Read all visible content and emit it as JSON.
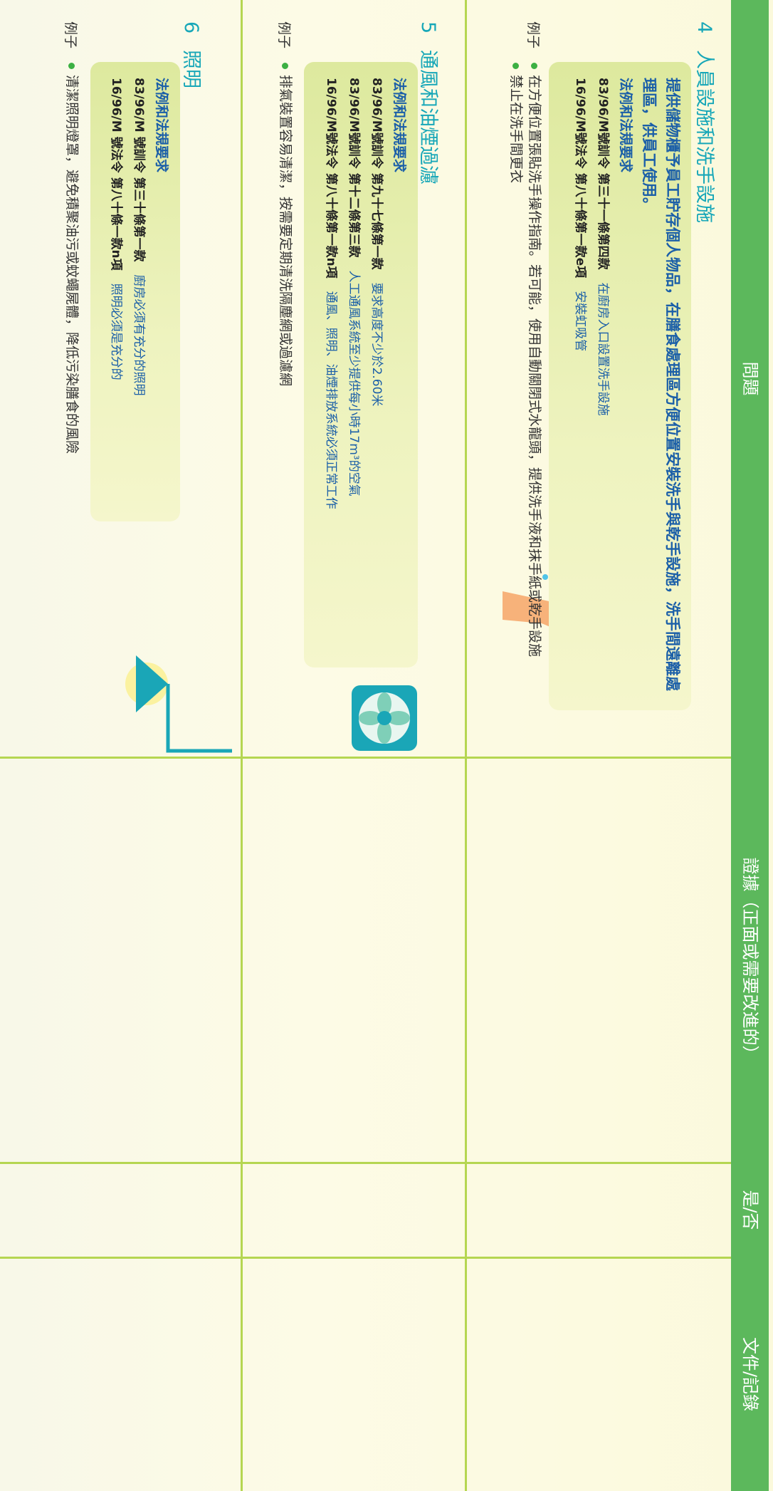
{
  "header": {
    "columns": [
      "問題",
      "證據（正面或需要改進的）",
      "是/否",
      "文件/記錄"
    ]
  },
  "rows": [
    {
      "number": "4",
      "title": "人員設施和洗手設施",
      "lead": "提供儲物櫃予員工貯存個人物品，在膳食處理區方便位置安裝洗手與乾手設施，洗手間遠離處理區，供員工使用。",
      "requirements_heading": "法例和法規要求",
      "regulations": [
        {
          "ref": "83/96/M號訓令 第三十一條第四款",
          "desc": "在廚房入口設置洗手設施"
        },
        {
          "ref": "16/96/M號法令 第八十條第一款e項",
          "desc": "安裝虹吸管"
        }
      ],
      "example_label": "例子",
      "examples": [
        "在方便位置張貼洗手操作指南。若可能，使用自動關閉式水龍頭，提供洗手液和抹手紙或乾手設施",
        "禁止在洗手間更衣"
      ]
    },
    {
      "number": "5",
      "title": "通風和油煙過濾",
      "requirements_heading": "法例和法規要求",
      "regulations": [
        {
          "ref": "83/96/M號訓令 第九十七條第一款",
          "desc": "要求高度不少於2.60米"
        },
        {
          "ref": "83/96/M號訓令 第十二條第三款",
          "desc": "人工通風系統至少提供每小時17m³的空氣"
        },
        {
          "ref": "16/96/M號法令 第八十條第一款n項",
          "desc": "通風、照明、油煙排放系統必須正常工作"
        }
      ],
      "example_label": "例子",
      "examples": [
        "排氣裝置容易清潔，按需要定期清洗隔塵網或過濾網"
      ]
    },
    {
      "number": "6",
      "title": "照明",
      "requirements_heading": "法例和法規要求",
      "regulations": [
        {
          "ref": "83/96/M 號訓令 第三十條第一款",
          "desc": "廚房必須有充分的照明"
        },
        {
          "ref": "16/96/M 號法令 第八十條一款n項",
          "desc": "照明必須是充分的"
        }
      ],
      "example_label": "例子",
      "examples": [
        "清潔照明燈罩，避免積聚油污或蚊蠅屍體，降低污染膳食的風險"
      ]
    }
  ]
}
